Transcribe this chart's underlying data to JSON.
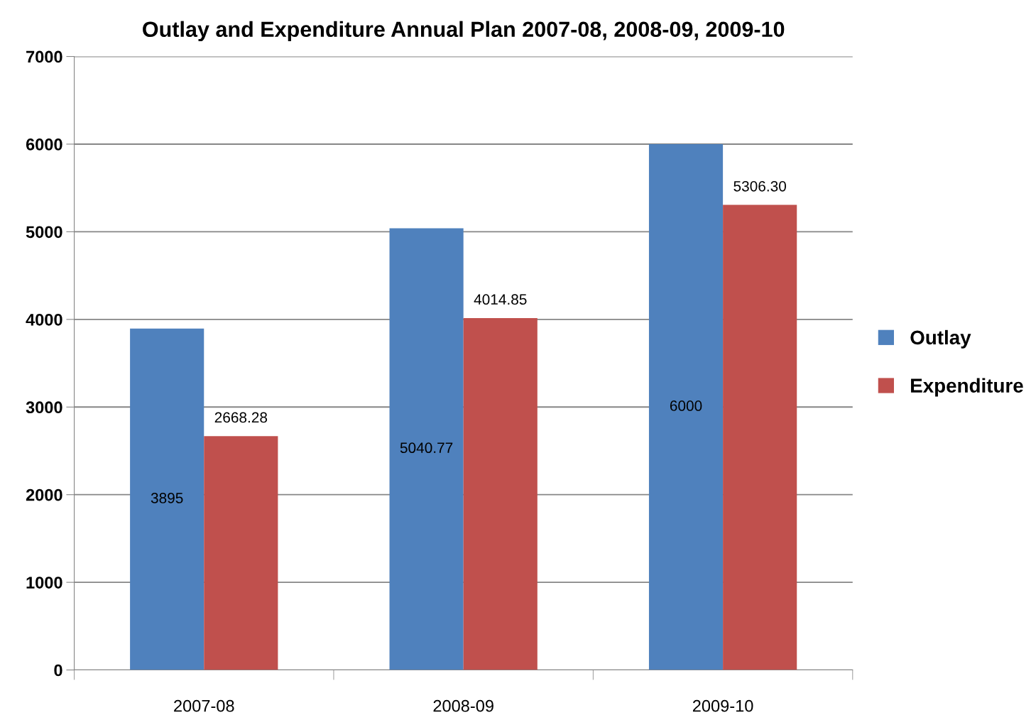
{
  "chart_data": {
    "type": "bar",
    "title": "Outlay and Expenditure Annual Plan 2007-08, 2008-09, 2009-10",
    "categories": [
      "2007-08",
      "2008-09",
      "2009-10"
    ],
    "series": [
      {
        "name": "Outlay",
        "color": "#4f81bd",
        "values": [
          3895,
          5040.77,
          6000
        ],
        "value_labels": [
          "3895",
          "5040.77",
          "6000"
        ]
      },
      {
        "name": "Expenditure",
        "color": "#c0504d",
        "values": [
          2668.28,
          4014.85,
          5306.3
        ],
        "value_labels": [
          "2668.28",
          "4014.85",
          "5306.30"
        ]
      }
    ],
    "ylim": [
      0,
      7000
    ],
    "yticks": [
      0,
      1000,
      2000,
      3000,
      4000,
      5000,
      6000,
      7000
    ],
    "grid": "y",
    "legend": "right"
  }
}
